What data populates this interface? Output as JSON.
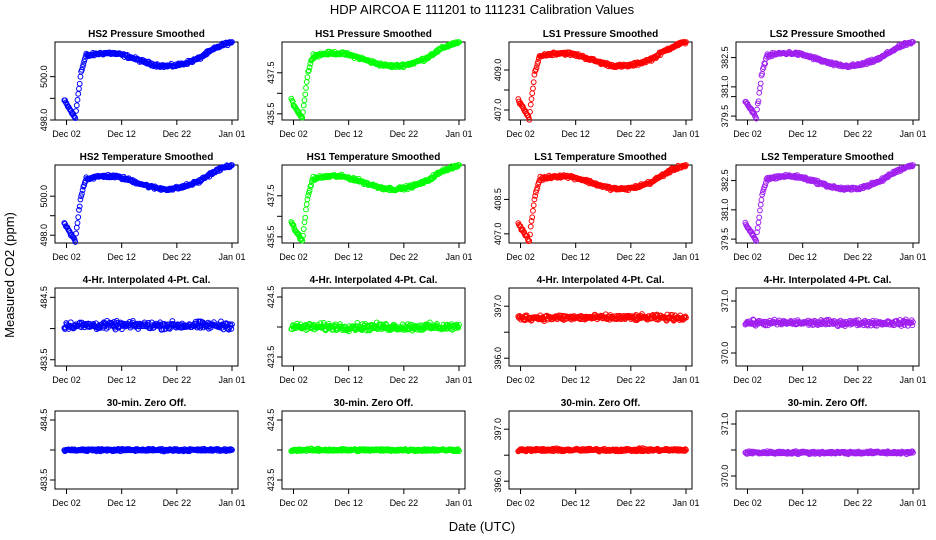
{
  "figure": {
    "title": "HDP    AIRCOA E    111201 to 111231    Calibration Values",
    "xlabel": "Date (UTC)",
    "ylabel": "Measured CO2 (ppm)",
    "x_tick_labels": [
      "Dec 02",
      "Dec 12",
      "Dec 22",
      "Jan 01"
    ]
  },
  "colors": {
    "HS2": "#0000ff",
    "HS1": "#00ff00",
    "LS1": "#ff0000",
    "LS2": "#a020f0"
  },
  "chart_data": [
    {
      "type": "scatter",
      "row": 0,
      "col": 0,
      "title": "HS2 Pressure Smoothed",
      "series": "HS2",
      "ylim": [
        498.0,
        501.6
      ],
      "yticks": [
        498.0,
        499.0,
        500.0
      ],
      "ytick_labels": [
        "498.0",
        "",
        "500.0"
      ],
      "xlim": [
        0,
        31
      ],
      "profile": "pressure"
    },
    {
      "type": "scatter",
      "row": 0,
      "col": 1,
      "title": "HS1 Pressure Smoothed",
      "series": "HS1",
      "ylim": [
        435.2,
        439.0
      ],
      "yticks": [
        435.5,
        436.5,
        437.5
      ],
      "ytick_labels": [
        "435.5",
        "",
        "437.5"
      ],
      "xlim": [
        0,
        31
      ],
      "profile": "pressure"
    },
    {
      "type": "scatter",
      "row": 0,
      "col": 2,
      "title": "LS1 Pressure Smoothed",
      "series": "LS1",
      "ylim": [
        406.5,
        410.4
      ],
      "yticks": [
        407.0,
        408.0,
        409.0
      ],
      "ytick_labels": [
        "407.0",
        "",
        "409.0"
      ],
      "xlim": [
        0,
        31
      ],
      "profile": "pressure"
    },
    {
      "type": "scatter",
      "row": 0,
      "col": 3,
      "title": "LS2 Pressure Smoothed",
      "series": "LS2",
      "ylim": [
        379.3,
        383.3
      ],
      "yticks": [
        379.5,
        380.5,
        381.0,
        382.5
      ],
      "ytick_labels": [
        "379.5",
        "",
        "381.0",
        "382.5"
      ],
      "xlim": [
        0,
        31
      ],
      "profile": "pressure"
    },
    {
      "type": "scatter",
      "row": 1,
      "col": 0,
      "title": "HS2 Temperature Smoothed",
      "series": "HS2",
      "ylim": [
        497.6,
        501.6
      ],
      "yticks": [
        498.0,
        499.0,
        500.0
      ],
      "ytick_labels": [
        "498.0",
        "",
        "500.0"
      ],
      "xlim": [
        0,
        31
      ],
      "profile": "temperature"
    },
    {
      "type": "scatter",
      "row": 1,
      "col": 1,
      "title": "HS1 Temperature Smoothed",
      "series": "HS1",
      "ylim": [
        435.2,
        439.0
      ],
      "yticks": [
        435.5,
        436.5,
        437.5
      ],
      "ytick_labels": [
        "435.5",
        "",
        "437.5"
      ],
      "xlim": [
        0,
        31
      ],
      "profile": "temperature"
    },
    {
      "type": "scatter",
      "row": 1,
      "col": 2,
      "title": "LS1 Temperature Smoothed",
      "series": "LS1",
      "ylim": [
        406.6,
        410.0
      ],
      "yticks": [
        407.0,
        408.5
      ],
      "ytick_labels": [
        "407.0",
        "408.5"
      ],
      "xlim": [
        0,
        31
      ],
      "profile": "temperature"
    },
    {
      "type": "scatter",
      "row": 1,
      "col": 3,
      "title": "LS2 Temperature Smoothed",
      "series": "LS2",
      "ylim": [
        379.3,
        383.3
      ],
      "yticks": [
        379.5,
        381.0,
        382.5
      ],
      "ytick_labels": [
        "379.5",
        "381.0",
        "382.5"
      ],
      "xlim": [
        0,
        31
      ],
      "profile": "temperature"
    },
    {
      "type": "scatter",
      "row": 2,
      "col": 0,
      "title": "4-Hr. Interpolated 4-Pt. Cal.",
      "series": "HS2",
      "ylim": [
        483.4,
        484.65
      ],
      "yticks": [
        483.5,
        484.0,
        484.5
      ],
      "ytick_labels": [
        "483.5",
        "",
        "484.5"
      ],
      "xlim": [
        0,
        31
      ],
      "profile": "flat",
      "center": 484.05,
      "spread": 0.09
    },
    {
      "type": "scatter",
      "row": 2,
      "col": 1,
      "title": "4-Hr. Interpolated 4-Pt. Cal.",
      "series": "HS1",
      "ylim": [
        423.35,
        424.65
      ],
      "yticks": [
        423.5,
        424.0,
        424.5
      ],
      "ytick_labels": [
        "423.5",
        "",
        "424.5"
      ],
      "xlim": [
        0,
        31
      ],
      "profile": "flat",
      "center": 424.0,
      "spread": 0.09
    },
    {
      "type": "scatter",
      "row": 2,
      "col": 2,
      "title": "4-Hr. Interpolated 4-Pt. Cal.",
      "series": "LS1",
      "ylim": [
        395.85,
        397.35
      ],
      "yticks": [
        396.0,
        396.5,
        397.0
      ],
      "ytick_labels": [
        "396.0",
        "",
        "397.0"
      ],
      "xlim": [
        0,
        31
      ],
      "profile": "flat",
      "center": 396.78,
      "spread": 0.08
    },
    {
      "type": "scatter",
      "row": 2,
      "col": 3,
      "title": "4-Hr. Interpolated 4-Pt. Cal.",
      "series": "LS2",
      "ylim": [
        369.75,
        371.25
      ],
      "yticks": [
        370.0,
        370.5,
        371.0
      ],
      "ytick_labels": [
        "370.0",
        "",
        "371.0"
      ],
      "xlim": [
        0,
        31
      ],
      "profile": "flat",
      "center": 370.58,
      "spread": 0.08
    },
    {
      "type": "scatter",
      "row": 3,
      "col": 0,
      "title": "30-min. Zero Off.",
      "series": "HS2",
      "ylim": [
        483.35,
        484.65
      ],
      "yticks": [
        483.5,
        484.0,
        484.5
      ],
      "ytick_labels": [
        "483.5",
        "",
        "484.5"
      ],
      "xlim": [
        0,
        31
      ],
      "profile": "flat",
      "center": 484.0,
      "spread": 0.03
    },
    {
      "type": "scatter",
      "row": 3,
      "col": 1,
      "title": "30-min. Zero Off.",
      "series": "HS1",
      "ylim": [
        423.35,
        424.65
      ],
      "yticks": [
        423.5,
        424.0,
        424.5
      ],
      "ytick_labels": [
        "423.5",
        "",
        "424.5"
      ],
      "xlim": [
        0,
        31
      ],
      "profile": "flat",
      "center": 424.0,
      "spread": 0.03
    },
    {
      "type": "scatter",
      "row": 3,
      "col": 2,
      "title": "30-min. Zero Off.",
      "series": "LS1",
      "ylim": [
        395.85,
        397.35
      ],
      "yticks": [
        396.0,
        396.5,
        397.0
      ],
      "ytick_labels": [
        "396.0",
        "",
        "397.0"
      ],
      "xlim": [
        0,
        31
      ],
      "profile": "flat",
      "center": 396.6,
      "spread": 0.04
    },
    {
      "type": "scatter",
      "row": 3,
      "col": 3,
      "title": "30-min. Zero Off.",
      "series": "LS2",
      "ylim": [
        369.75,
        371.25
      ],
      "yticks": [
        370.0,
        370.5,
        371.0
      ],
      "ytick_labels": [
        "370.0",
        "",
        "371.0"
      ],
      "xlim": [
        0,
        31
      ],
      "profile": "flat",
      "center": 370.45,
      "spread": 0.04
    }
  ]
}
